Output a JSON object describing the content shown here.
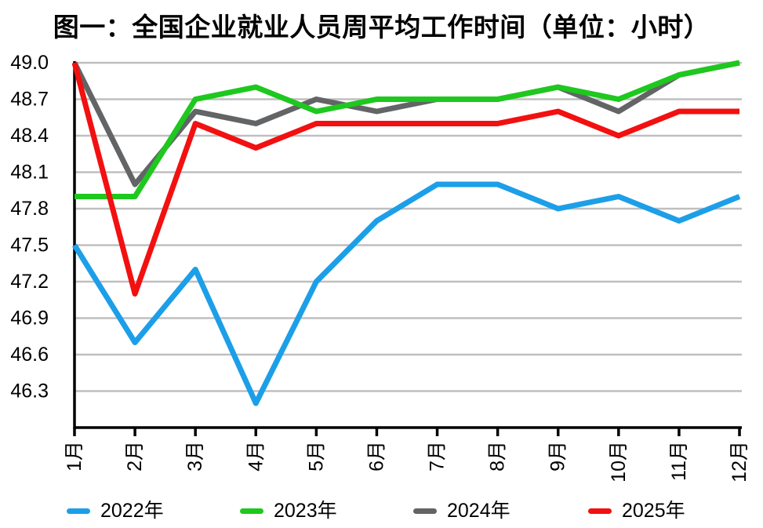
{
  "chart_data": {
    "type": "line",
    "title": "图一：全国企业就业人员周平均工作时间（单位：小时）",
    "unit": "小时",
    "xlabel": "",
    "ylabel": "",
    "categories": [
      "1月",
      "2月",
      "3月",
      "4月",
      "5月",
      "6月",
      "7月",
      "8月",
      "9月",
      "10月",
      "11月",
      "12月"
    ],
    "series": [
      {
        "name": "2022年",
        "color": "#1C9FE8",
        "values": [
          47.5,
          46.7,
          47.3,
          46.2,
          47.2,
          47.7,
          48.0,
          48.0,
          47.8,
          47.9,
          47.7,
          47.9
        ]
      },
      {
        "name": "2023年",
        "color": "#1EC81E",
        "values": [
          47.9,
          47.9,
          48.7,
          48.8,
          48.6,
          48.7,
          48.7,
          48.7,
          48.8,
          48.7,
          48.9,
          49.0
        ]
      },
      {
        "name": "2024年",
        "color": "#626466",
        "values": [
          49.0,
          48.0,
          48.6,
          48.5,
          48.7,
          48.6,
          48.7,
          48.7,
          48.8,
          48.6,
          48.9,
          49.0
        ]
      },
      {
        "name": "2025年",
        "color": "#F21010",
        "values": [
          49.0,
          47.1,
          48.5,
          48.3,
          48.5,
          48.5,
          48.5,
          48.5,
          48.6,
          48.4,
          48.6,
          48.6
        ]
      }
    ],
    "draw_order": [
      "2022年",
      "2024年",
      "2023年",
      "2025年"
    ],
    "yticks": [
      49.0,
      48.7,
      48.4,
      48.1,
      47.8,
      47.5,
      47.2,
      46.9,
      46.6,
      46.3
    ],
    "ylim": [
      46.0,
      49.0
    ],
    "grid": true,
    "gridline_color": "#BFBFBF",
    "axis_color": "#000000",
    "text_color": "#000000",
    "legend_position": "bottom"
  }
}
